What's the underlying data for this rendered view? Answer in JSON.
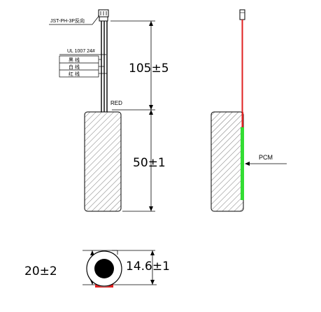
{
  "labels": {
    "connector": "JST-PH-3P反向",
    "wire_spec": "UL 1007 24#",
    "wire_black": "黑 线",
    "wire_white": "白 线",
    "wire_red": "红 线",
    "red": "RED",
    "pcm": "PCM"
  },
  "dimensions": {
    "wire_length": "105±5",
    "cell_length": "50±1",
    "cell_outer_diameter": "20±2",
    "cell_diameter": "14.6±1"
  },
  "colors": {
    "wire_red": "#e02020",
    "wire_black": "#111111",
    "pcm_green": "#33dd33",
    "end_red": "#e02020"
  }
}
